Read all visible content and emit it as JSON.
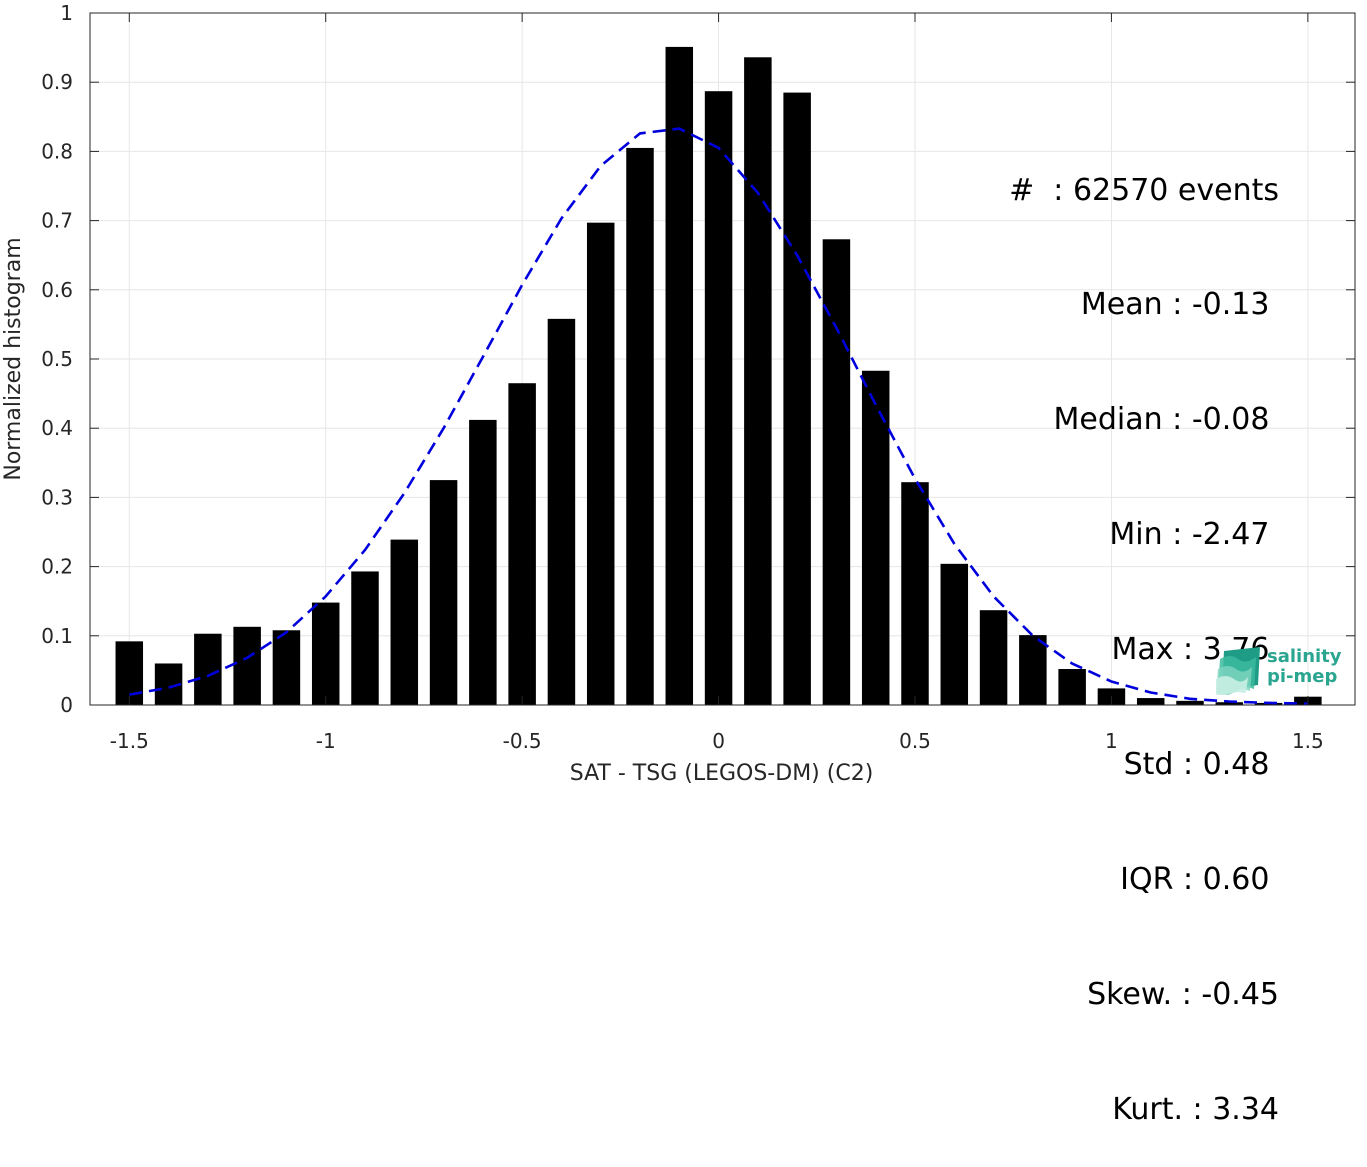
{
  "chart_data": {
    "type": "bar",
    "xlabel": "SAT - TSG (LEGOS-DM) (C2)",
    "ylabel": "Normalized histogram",
    "xlim": [
      -1.6,
      1.62
    ],
    "ylim": [
      0,
      1
    ],
    "grid": true,
    "x_ticks": [
      -1.5,
      -1,
      -0.5,
      0,
      0.5,
      1,
      1.5
    ],
    "x_tick_labels": [
      "-1.5",
      "-1",
      "-0.5",
      "0",
      "0.5",
      "1",
      "1.5"
    ],
    "y_ticks": [
      0,
      0.1,
      0.2,
      0.3,
      0.4,
      0.5,
      0.6,
      0.7,
      0.8,
      0.9,
      1
    ],
    "y_tick_labels": [
      "0",
      "0.1",
      "0.2",
      "0.3",
      "0.4",
      "0.5",
      "0.6",
      "0.7",
      "0.8",
      "0.9",
      "1"
    ],
    "bar_width": 0.07,
    "x": [
      -1.5,
      -1.4,
      -1.3,
      -1.2,
      -1.1,
      -1.0,
      -0.9,
      -0.8,
      -0.7,
      -0.6,
      -0.5,
      -0.4,
      -0.3,
      -0.2,
      -0.1,
      0.0,
      0.1,
      0.2,
      0.3,
      0.4,
      0.5,
      0.6,
      0.7,
      0.8,
      0.9,
      1.0,
      1.1,
      1.2,
      1.3,
      1.4,
      1.5
    ],
    "values": [
      0.092,
      0.06,
      0.103,
      0.113,
      0.108,
      0.148,
      0.193,
      0.239,
      0.325,
      0.412,
      0.465,
      0.558,
      0.697,
      0.805,
      0.951,
      0.887,
      0.936,
      0.885,
      0.673,
      0.483,
      0.322,
      0.204,
      0.137,
      0.101,
      0.052,
      0.024,
      0.01,
      0.006,
      0.004,
      0.003,
      0.012
    ],
    "bar_color": "#000000",
    "fit_curve": {
      "style": "dashed",
      "color": "#0000dd",
      "x": [
        -1.5,
        -1.4,
        -1.3,
        -1.2,
        -1.1,
        -1.0,
        -0.9,
        -0.8,
        -0.7,
        -0.6,
        -0.5,
        -0.4,
        -0.3,
        -0.2,
        -0.1,
        0.0,
        0.1,
        0.2,
        0.3,
        0.4,
        0.5,
        0.6,
        0.7,
        0.8,
        0.9,
        1.0,
        1.1,
        1.2,
        1.3,
        1.4,
        1.5
      ],
      "y": [
        0.015,
        0.025,
        0.042,
        0.068,
        0.105,
        0.157,
        0.224,
        0.306,
        0.4,
        0.503,
        0.607,
        0.703,
        0.779,
        0.826,
        0.833,
        0.805,
        0.74,
        0.65,
        0.545,
        0.434,
        0.327,
        0.233,
        0.157,
        0.1,
        0.06,
        0.034,
        0.018,
        0.009,
        0.005,
        0.003,
        0.002
      ]
    }
  },
  "stats": [
    "#  : 62570 events",
    "Mean : -0.13 ",
    "Median : -0.08 ",
    "Min : -2.47 ",
    "Max : 3.76 ",
    "Std : 0.48 ",
    "IQR : 0.60 ",
    "Skew. : -0.45",
    "Kurt. : 3.34"
  ],
  "logo": {
    "line1": "salinity",
    "line2": "pi-mep",
    "color": "#2aa58f"
  }
}
